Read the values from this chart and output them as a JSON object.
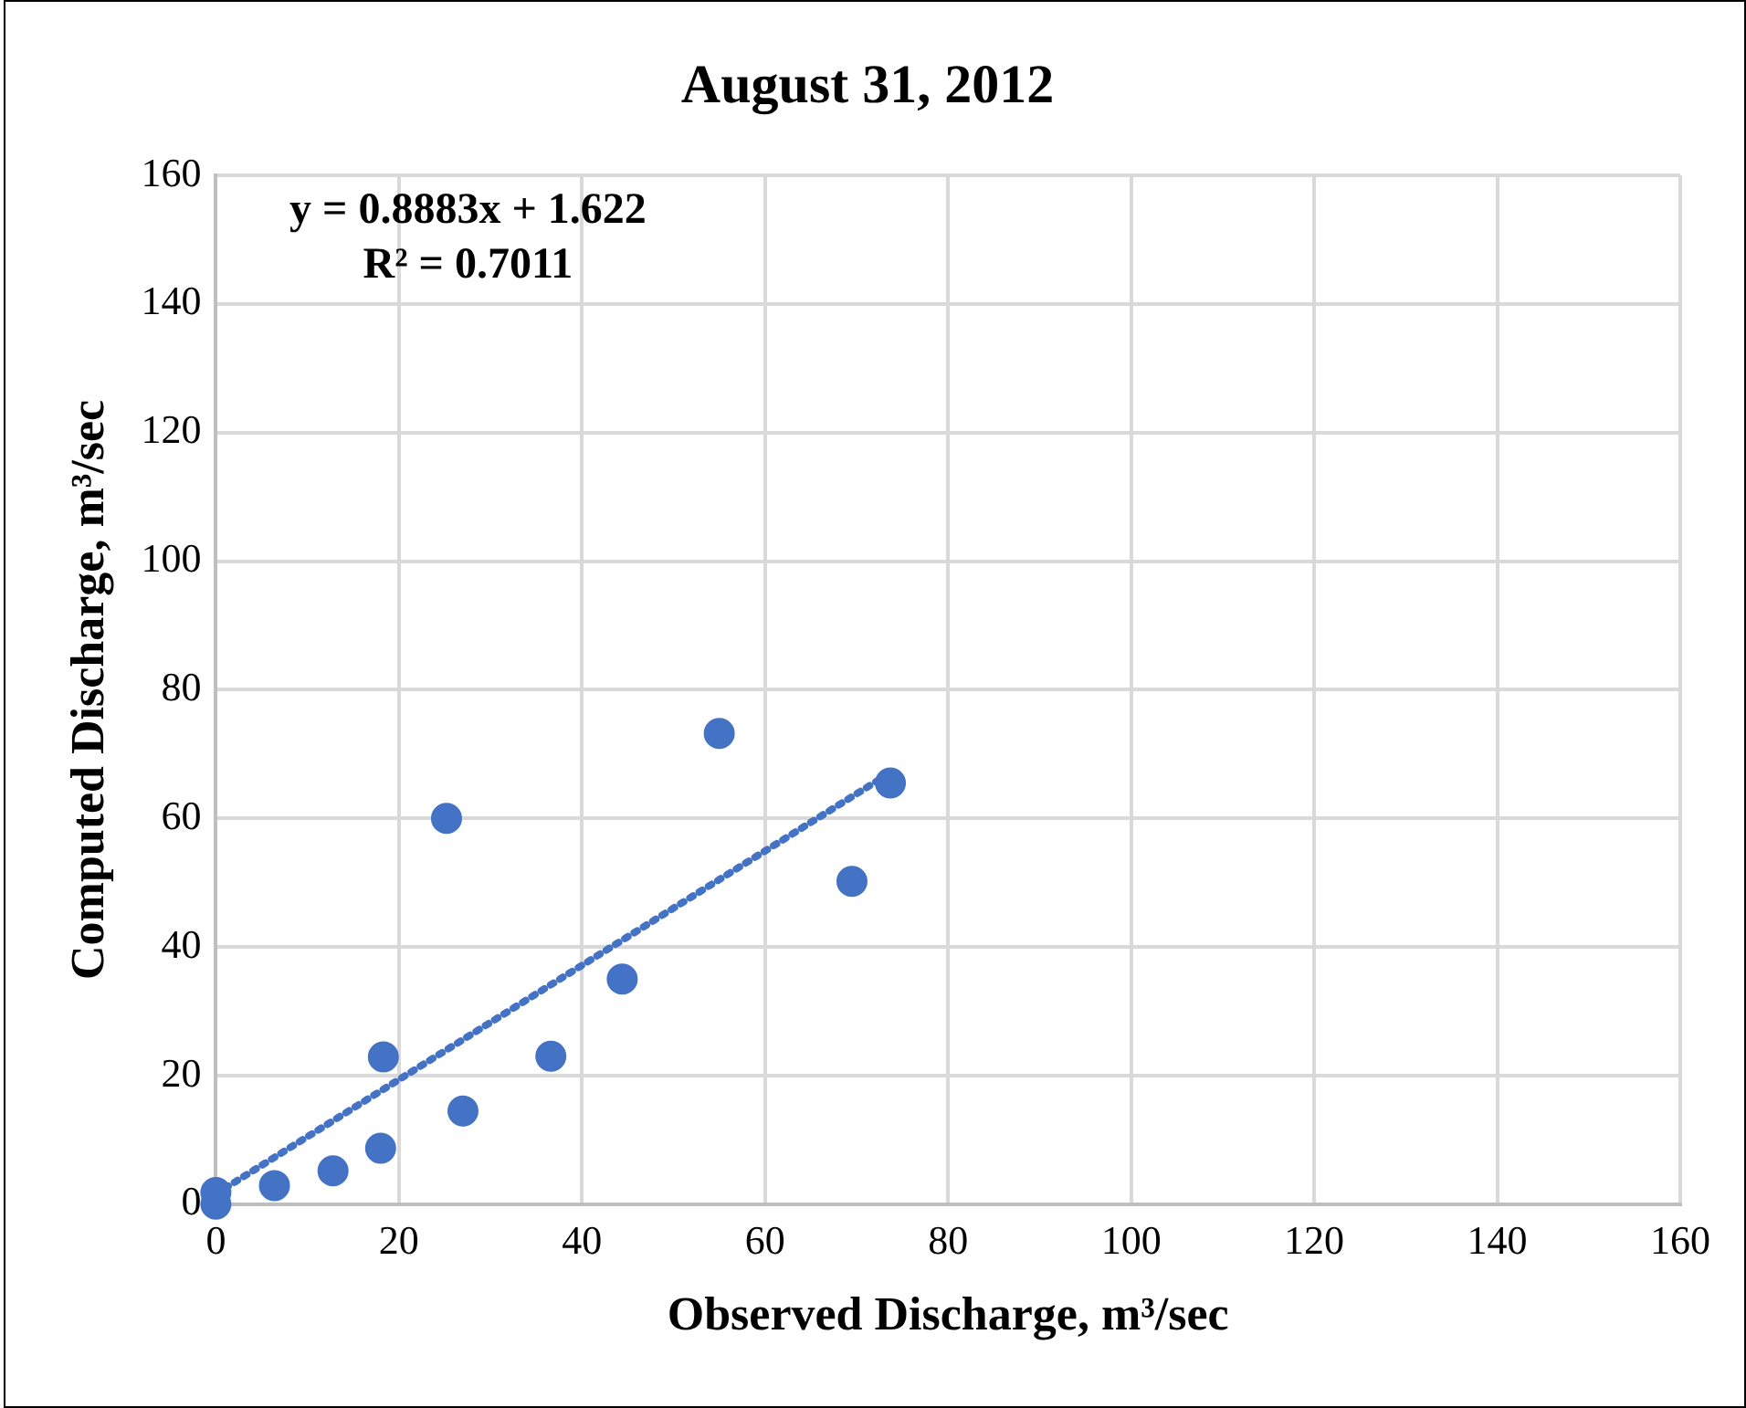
{
  "chart_data": {
    "type": "scatter",
    "title": "August 31, 2012",
    "xlabel": "Observed Discharge, m³/sec",
    "ylabel": "Computed Discharge, m³/sec",
    "annotations": [
      "y = 0.8883x + 1.622",
      "R² = 0.7011"
    ],
    "xlim": [
      0,
      160
    ],
    "xticks": [
      0,
      20,
      40,
      60,
      80,
      100,
      120,
      140,
      160
    ],
    "ylim": [
      0,
      160
    ],
    "yticks": [
      0,
      20,
      40,
      60,
      80,
      100,
      120,
      140,
      160
    ],
    "grid": true,
    "legend": false,
    "series": [
      {
        "color": "#4472c4",
        "marker": "circle",
        "x": [
          0,
          0,
          6.4,
          12.8,
          18.0,
          18.3,
          25.2,
          27.0,
          36.6,
          44.4,
          55.0,
          69.5,
          73.7
        ],
        "values": [
          1.8,
          0,
          2.9,
          5.2,
          8.7,
          22.9,
          60,
          14.5,
          23.0,
          35.0,
          73.2,
          50.2,
          65.5
        ]
      },
      {
        "type": "line",
        "color": "#4472c4",
        "marker": "none",
        "line_style": "dotted",
        "x": [
          0,
          73.7
        ],
        "values": [
          1.6,
          67.1
        ]
      }
    ]
  }
}
